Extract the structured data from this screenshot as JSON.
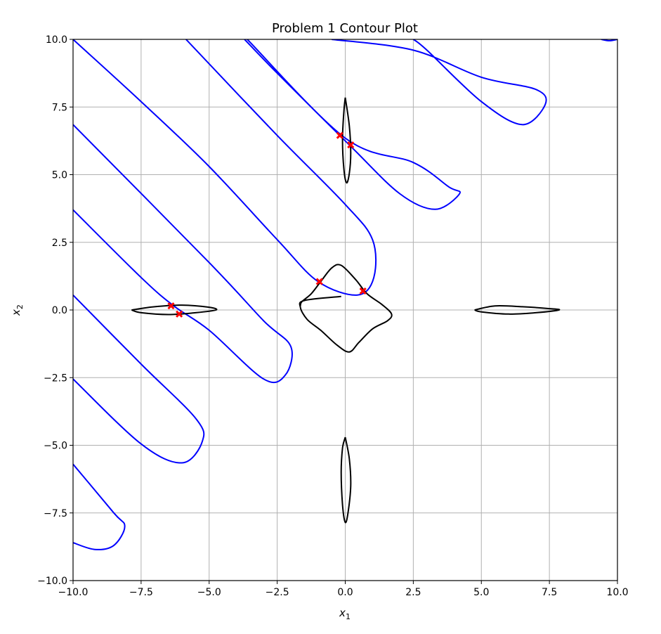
{
  "chart_data": {
    "type": "line",
    "title": "Problem 1 Contour Plot",
    "xlabel": "x",
    "xlabel_sub": "1",
    "ylabel": "x",
    "ylabel_sub": "2",
    "xlim": [
      -10,
      10
    ],
    "ylim": [
      -10,
      10
    ],
    "grid": true,
    "x_ticks": [
      -10,
      -7.5,
      -5,
      -2.5,
      0,
      2.5,
      5,
      7.5,
      10
    ],
    "x_tick_labels": [
      "−10.0",
      "−7.5",
      "−5.0",
      "−2.5",
      "0.0",
      "2.5",
      "5.0",
      "7.5",
      "10.0"
    ],
    "y_ticks": [
      -10,
      -7.5,
      -5,
      -2.5,
      0,
      2.5,
      5,
      7.5,
      10
    ],
    "y_tick_labels": [
      "−10.0",
      "−7.5",
      "−5.0",
      "−2.5",
      "0.0",
      "2.5",
      "5.0",
      "7.5",
      "10.0"
    ],
    "colors": {
      "blue": "#0000ff",
      "black": "#000000",
      "red": "#ff0000",
      "grid": "#b0b0b0"
    },
    "series": [
      {
        "color": "blue",
        "points": [
          [
            -5.85,
            10
          ],
          [
            -2.5,
            6.45
          ],
          [
            0,
            3.9
          ],
          [
            1,
            2.6
          ],
          [
            1.05,
            1.2
          ],
          [
            0.45,
            0.55
          ],
          [
            -1,
            1.05
          ],
          [
            -2.5,
            2.6
          ],
          [
            -5,
            5.3
          ],
          [
            -7.5,
            7.7
          ],
          [
            -10,
            10
          ]
        ]
      },
      {
        "color": "blue",
        "points": [
          [
            -3.6,
            10
          ],
          [
            0,
            6.35
          ],
          [
            2.5,
            5.45
          ],
          [
            3.8,
            4.55
          ],
          [
            4.2,
            4.3
          ],
          [
            3.3,
            3.72
          ],
          [
            2.0,
            4.3
          ],
          [
            0.15,
            6.1
          ],
          [
            -2.5,
            8.75
          ],
          [
            -3.7,
            10
          ]
        ]
      },
      {
        "color": "blue",
        "points": [
          [
            -0.5,
            10
          ],
          [
            2.5,
            9.6
          ],
          [
            5,
            8.6
          ],
          [
            7.0,
            8.15
          ],
          [
            7.35,
            7.6
          ],
          [
            6.5,
            6.85
          ],
          [
            5,
            7.7
          ],
          [
            3.0,
            9.6
          ],
          [
            2.5,
            10
          ]
        ]
      },
      {
        "color": "blue",
        "points": [
          [
            -10,
            6.85
          ],
          [
            -5,
            1.75
          ],
          [
            -3.0,
            -0.4
          ],
          [
            -2.0,
            -1.35
          ],
          [
            -2.2,
            -2.4
          ],
          [
            -3.0,
            -2.55
          ],
          [
            -5,
            -0.75
          ],
          [
            -6.3,
            0.15
          ],
          [
            -7.5,
            1.2
          ],
          [
            -10,
            3.7
          ]
        ]
      },
      {
        "color": "blue",
        "points": [
          [
            -10,
            0.55
          ],
          [
            -7.5,
            -2.0
          ],
          [
            -5.5,
            -4.0
          ],
          [
            -5.25,
            -4.85
          ],
          [
            -6.0,
            -5.65
          ],
          [
            -7.5,
            -4.95
          ],
          [
            -10,
            -2.55
          ]
        ]
      },
      {
        "color": "blue",
        "points": [
          [
            -10,
            -5.7
          ],
          [
            -8.5,
            -7.5
          ],
          [
            -8.1,
            -8.0
          ],
          [
            -8.5,
            -8.7
          ],
          [
            -9.2,
            -8.85
          ],
          [
            -10,
            -8.6
          ]
        ]
      },
      {
        "color": "blue",
        "points": [
          [
            9.4,
            10
          ],
          [
            9.7,
            9.95
          ],
          [
            10,
            10
          ]
        ]
      },
      {
        "color": "black",
        "points": [
          [
            -0.15,
            0.5
          ],
          [
            -1.5,
            0.35
          ],
          [
            -1.65,
            0.1
          ],
          [
            -1.4,
            -0.35
          ],
          [
            -0.9,
            -0.75
          ],
          [
            -0.3,
            -1.3
          ],
          [
            0.15,
            -1.55
          ],
          [
            0.5,
            -1.2
          ],
          [
            1.0,
            -0.7
          ],
          [
            1.55,
            -0.4
          ],
          [
            1.7,
            -0.15
          ],
          [
            1.35,
            0.2
          ],
          [
            0.8,
            0.6
          ],
          [
            0.4,
            1.1
          ],
          [
            -0.15,
            1.65
          ],
          [
            -0.5,
            1.55
          ],
          [
            -0.9,
            1.05
          ],
          [
            -1.25,
            0.6
          ],
          [
            -1.6,
            0.3
          ],
          [
            -1.65,
            0.15
          ]
        ]
      },
      {
        "color": "black",
        "points": [
          [
            0,
            7.85
          ],
          [
            0.15,
            6.8
          ],
          [
            0.2,
            5.8
          ],
          [
            0.15,
            5.05
          ],
          [
            0.05,
            4.7
          ],
          [
            -0.05,
            5.2
          ],
          [
            -0.1,
            6.3
          ],
          [
            -0.05,
            7.35
          ],
          [
            0,
            7.85
          ]
        ]
      },
      {
        "color": "black",
        "points": [
          [
            0,
            -4.7
          ],
          [
            0.15,
            -5.5
          ],
          [
            0.2,
            -6.5
          ],
          [
            0.1,
            -7.5
          ],
          [
            0,
            -7.85
          ],
          [
            -0.1,
            -7.2
          ],
          [
            -0.15,
            -6.0
          ],
          [
            -0.1,
            -5.1
          ],
          [
            0,
            -4.7
          ]
        ]
      },
      {
        "color": "black",
        "points": [
          [
            -7.85,
            0
          ],
          [
            -7.0,
            0.12
          ],
          [
            -6.0,
            0.18
          ],
          [
            -5.0,
            0.1
          ],
          [
            -4.75,
            0
          ],
          [
            -5.5,
            -0.1
          ],
          [
            -6.5,
            -0.17
          ],
          [
            -7.5,
            -0.1
          ],
          [
            -7.85,
            0
          ]
        ]
      },
      {
        "color": "black",
        "points": [
          [
            4.75,
            0
          ],
          [
            5.5,
            0.15
          ],
          [
            6.5,
            0.12
          ],
          [
            7.5,
            0.05
          ],
          [
            7.85,
            0
          ],
          [
            7.0,
            -0.1
          ],
          [
            6.0,
            -0.15
          ],
          [
            5.0,
            -0.07
          ],
          [
            4.75,
            0
          ]
        ]
      }
    ],
    "markers": {
      "color": "red",
      "symbol": "X",
      "points": [
        [
          -0.2,
          6.45
        ],
        [
          0.2,
          6.1
        ],
        [
          -0.95,
          1.05
        ],
        [
          0.65,
          0.7
        ],
        [
          -6.4,
          0.15
        ],
        [
          -6.1,
          -0.15
        ]
      ]
    }
  }
}
